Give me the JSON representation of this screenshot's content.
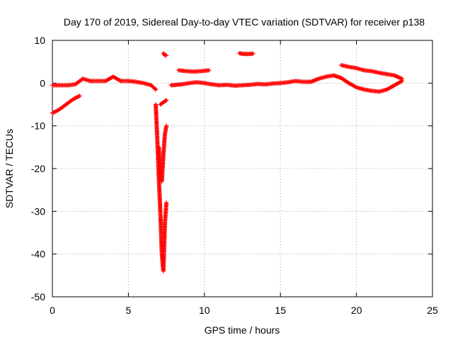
{
  "chart_data": {
    "type": "scatter",
    "title": "Day 170 of 2019, Sidereal Day-to-day VTEC variation (SDTVAR) for receiver p138",
    "xlabel": "GPS time / hours",
    "ylabel": "SDTVAR / TECUs",
    "xlim": [
      0,
      25
    ],
    "ylim": [
      -50,
      10
    ],
    "xticks": [
      0,
      5,
      10,
      15,
      20,
      25
    ],
    "yticks": [
      -50,
      -40,
      -30,
      -20,
      -10,
      0,
      10
    ],
    "grid": true,
    "marker": "+",
    "series": [
      {
        "name": "SDTVAR",
        "color": "#ff0000",
        "segments": [
          {
            "id": "early-upper-branch",
            "x": [
              0,
              0.5,
              1.0,
              1.5,
              2.0,
              2.5,
              3.0,
              3.5,
              4.0,
              4.5,
              5.0,
              5.5,
              6.0,
              6.5,
              6.8
            ],
            "y": [
              -0.5,
              -0.5,
              -0.5,
              -0.3,
              1.0,
              0.5,
              0.5,
              0.5,
              1.5,
              0.5,
              0.5,
              0.3,
              0.0,
              -0.5,
              -1.5
            ]
          },
          {
            "id": "early-lower-branch",
            "x": [
              0,
              0.3,
              0.6,
              0.9,
              1.2,
              1.5,
              1.8
            ],
            "y": [
              -7.0,
              -6.5,
              -5.8,
              -5.0,
              -4.2,
              -3.5,
              -3.0
            ]
          },
          {
            "id": "dip-segment",
            "x": [
              6.8,
              6.9,
              7.0,
              7.1,
              7.2,
              7.3,
              7.4,
              7.5
            ],
            "y": [
              -5.0,
              -13,
              -22,
              -30,
              -40,
              -44,
              -33,
              -28
            ]
          },
          {
            "id": "dip-recovery",
            "x": [
              7.0,
              7.1,
              7.2,
              7.3,
              7.4,
              7.5
            ],
            "y": [
              -15,
              -20,
              -23,
              -17,
              -12,
              -10
            ]
          },
          {
            "id": "short-segment-7h",
            "x": [
              7.1,
              7.3,
              7.5
            ],
            "y": [
              -5.0,
              -4.5,
              -4.0
            ]
          },
          {
            "id": "spike-7.4h",
            "x": [
              7.3,
              7.4,
              7.5
            ],
            "y": [
              7.0,
              6.5,
              6.5
            ]
          },
          {
            "id": "mid-day-base",
            "x": [
              7.8,
              8.5,
              9.0,
              9.5,
              10.0,
              10.5,
              11.0,
              11.5,
              12.0,
              12.5,
              13.0,
              13.5,
              14.0,
              14.5,
              15.0,
              15.5,
              16.0,
              16.5,
              17.0,
              17.5,
              18.0,
              18.5,
              19.0,
              19.5,
              20.0,
              20.5,
              21.0,
              21.5,
              22.0,
              22.5,
              23.0
            ],
            "y": [
              -0.5,
              -0.3,
              0.0,
              0.2,
              0.0,
              -0.3,
              -0.5,
              -0.4,
              -0.6,
              -0.5,
              -0.4,
              -0.2,
              -0.3,
              -0.1,
              0.0,
              0.2,
              0.5,
              0.3,
              0.3,
              1.0,
              1.5,
              1.8,
              1.2,
              0.0,
              -1.0,
              -1.5,
              -1.8,
              -2.0,
              -1.5,
              -0.5,
              0.5
            ]
          },
          {
            "id": "upper-segment-8.5h",
            "x": [
              8.3,
              8.8,
              9.3,
              9.8,
              10.3
            ],
            "y": [
              3.0,
              2.8,
              2.7,
              2.8,
              3.0
            ]
          },
          {
            "id": "upper-segment-12.5h",
            "x": [
              12.3,
              12.6,
              12.9,
              13.2
            ],
            "y": [
              7.0,
              6.8,
              6.8,
              6.9
            ]
          },
          {
            "id": "late-upper-arc",
            "x": [
              19.0,
              19.5,
              20.0,
              20.5,
              21.0,
              21.5,
              22.0,
              22.5,
              23.0
            ],
            "y": [
              4.2,
              3.8,
              3.5,
              3.0,
              2.8,
              2.4,
              2.1,
              1.8,
              1.0
            ]
          }
        ]
      }
    ]
  }
}
